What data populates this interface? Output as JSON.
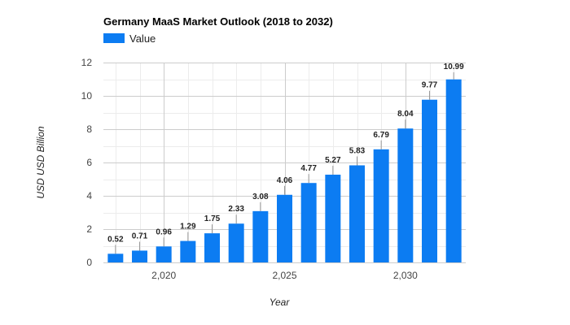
{
  "chart_data": {
    "type": "bar",
    "title": "Germany MaaS Market Outlook (2018 to 2032)",
    "xlabel": "Year",
    "ylabel": "USD USD Billion",
    "legend": {
      "position": "top-left",
      "entries": [
        "Value"
      ]
    },
    "color": "#0c7cf2",
    "x": [
      2018,
      2019,
      2020,
      2021,
      2022,
      2023,
      2024,
      2025,
      2026,
      2027,
      2028,
      2029,
      2030,
      2031,
      2032
    ],
    "series": [
      {
        "name": "Value",
        "values": [
          0.52,
          0.71,
          0.96,
          1.29,
          1.75,
          2.33,
          3.08,
          4.06,
          4.77,
          5.27,
          5.83,
          6.79,
          8.04,
          9.77,
          10.99
        ],
        "labels": [
          "0.52",
          "0.71",
          "0.96",
          "1.29",
          "1.75",
          "2.33",
          "3.08",
          "4.06",
          "4.77",
          "5.27",
          "5.83",
          "6.79",
          "8.04",
          "9.77",
          "10.99"
        ]
      }
    ],
    "xlim": [
      2017.5,
      2032.5
    ],
    "ylim": [
      0,
      12
    ],
    "y_ticks": [
      0,
      2,
      4,
      6,
      8,
      10,
      12
    ],
    "y_tick_labels": [
      "0",
      "2",
      "4",
      "6",
      "8",
      "10",
      "12"
    ],
    "x_ticks": [
      2020,
      2025,
      2030
    ],
    "x_tick_labels": [
      "2,020",
      "2,025",
      "2,030"
    ],
    "grid": true
  }
}
